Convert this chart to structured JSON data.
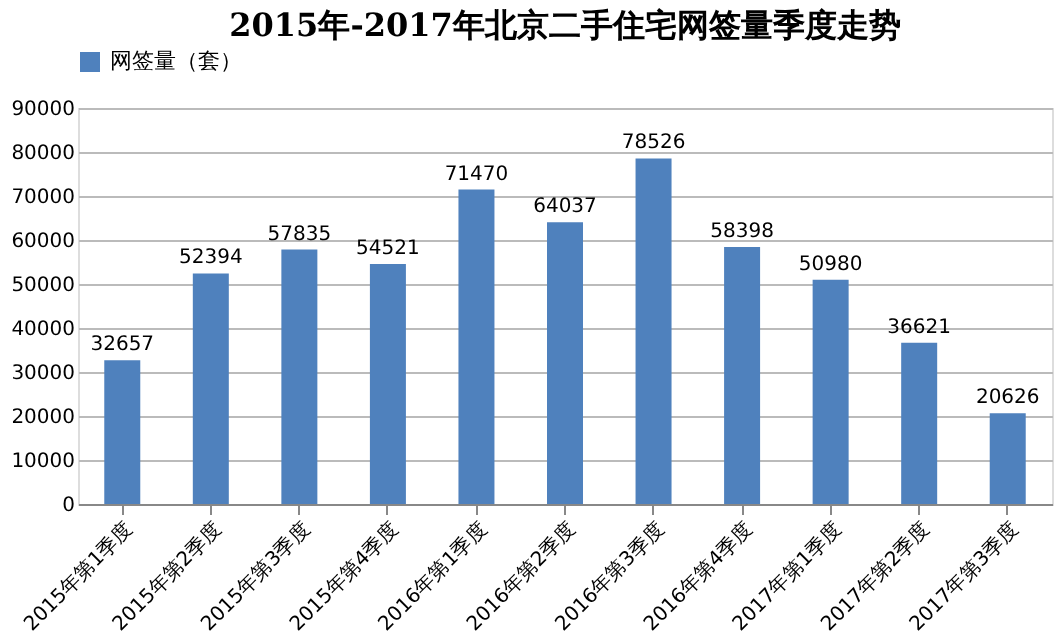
{
  "chart_data": {
    "type": "bar",
    "title": "2015年-2017年北京二手住宅网签量季度走势",
    "categories": [
      "2015年第1季度",
      "2015年第2季度",
      "2015年第3季度",
      "2015年第4季度",
      "2016年第1季度",
      "2016年第2季度",
      "2016年第3季度",
      "2016年第4季度",
      "2017年第1季度",
      "2017年第2季度",
      "2017年第3季度"
    ],
    "series": [
      {
        "name": "网签量（套）",
        "color": "#4f81bd",
        "values": [
          32657,
          52394,
          57835,
          54521,
          71470,
          64037,
          78526,
          58398,
          50980,
          36621,
          20626
        ]
      }
    ],
    "ylim": [
      0,
      90000
    ],
    "yticks": [
      0,
      10000,
      20000,
      30000,
      40000,
      50000,
      60000,
      70000,
      80000,
      90000
    ],
    "grid": "y",
    "legend": "top",
    "data_labels": true
  }
}
